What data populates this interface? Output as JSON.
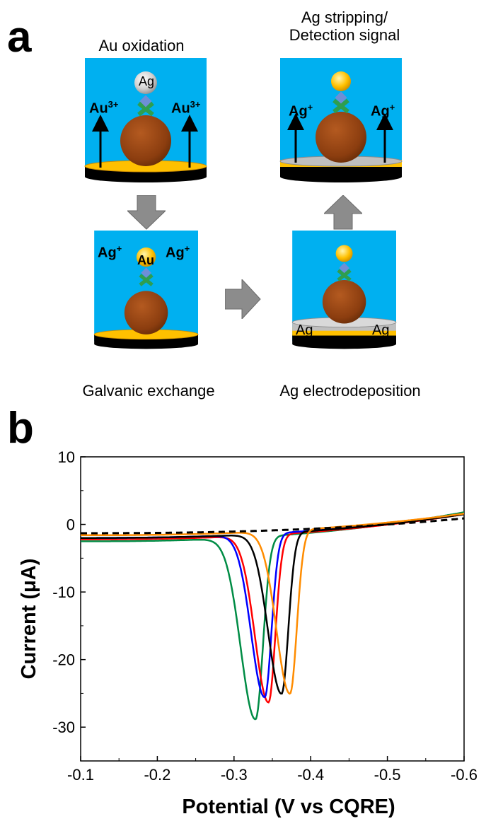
{
  "panel_a": {
    "letter": "a",
    "steps": [
      {
        "caption": "Au oxidation",
        "bead_label": "Ag",
        "side_label_left": "Au",
        "side_label_left_sup": "3+",
        "side_label_right": "Au",
        "side_label_right_sup": "3+"
      },
      {
        "caption": "Ag stripping/\nDetection signal",
        "side_label_left": "Ag",
        "side_label_left_sup": "+",
        "side_label_right": "Ag",
        "side_label_right_sup": "+"
      },
      {
        "caption": "Galvanic exchange",
        "bead_label": "Au",
        "side_label_left": "Ag",
        "side_label_left_sup": "+",
        "side_label_right": "Ag",
        "side_label_right_sup": "+"
      },
      {
        "caption": "Ag electrodeposition",
        "side_label_left": "Ag",
        "side_label_right": "Ag"
      }
    ],
    "colors": {
      "background": "#00b0f0",
      "particle": "#8b3d0f",
      "gold": "#ffc000",
      "silver": "#bfbfbf",
      "electrode": "#000000",
      "arrow": "#7f7f7f",
      "linker": "#6e8fd6",
      "cross": "#2e9e4f"
    }
  },
  "panel_b": {
    "letter": "b"
  },
  "chart_data": {
    "type": "line",
    "xlabel": "Potential (V vs CQRE)",
    "ylabel": "Current (μA)",
    "xlim": [
      -0.1,
      -0.6
    ],
    "ylim": [
      -35,
      10
    ],
    "xticks": [
      -0.1,
      -0.2,
      -0.3,
      -0.4,
      -0.5,
      -0.6
    ],
    "xtick_labels": [
      "-0.1",
      "-0.2",
      "-0.3",
      "-0.4",
      "-0.5",
      "-0.6"
    ],
    "yticks": [
      10,
      0,
      -10,
      -20,
      -30
    ],
    "ytick_labels": [
      "10",
      "0",
      "-10",
      "-20",
      "-30"
    ],
    "grid": false,
    "series": [
      {
        "color": "#008c45",
        "style": "solid",
        "baseline": -2.5,
        "peak_x": -0.328,
        "peak_y": -29.5,
        "width": 0.012,
        "end_y": 1.8
      },
      {
        "color": "#ff0000",
        "style": "solid",
        "baseline": -2.2,
        "peak_x": -0.345,
        "peak_y": -27.0,
        "width": 0.011,
        "end_y": 1.5
      },
      {
        "color": "#0000ff",
        "style": "solid",
        "baseline": -2.0,
        "peak_x": -0.34,
        "peak_y": -26.2,
        "width": 0.011,
        "end_y": 1.6
      },
      {
        "color": "#000000",
        "style": "solid",
        "baseline": -2.0,
        "peak_x": -0.362,
        "peak_y": -25.8,
        "width": 0.011,
        "end_y": 1.5
      },
      {
        "color": "#ff8c00",
        "style": "solid",
        "baseline": -1.6,
        "peak_x": -0.373,
        "peak_y": -25.8,
        "width": 0.011,
        "end_y": 1.6
      },
      {
        "color": "#000000",
        "style": "dashed",
        "baseline": -1.3,
        "peak_x": null,
        "peak_y": null,
        "width": null,
        "end_y": 0.9
      }
    ]
  }
}
